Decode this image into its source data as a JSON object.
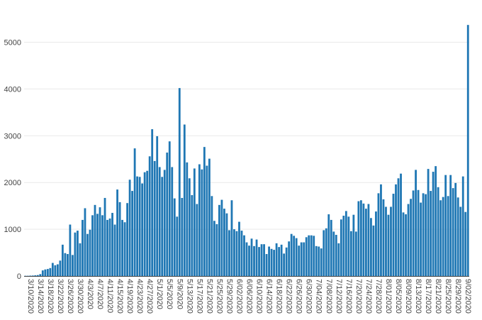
{
  "chart_data": {
    "type": "bar",
    "title": "",
    "xlabel": "",
    "ylabel": "",
    "bar_color": "#1f77b4",
    "ylim": [
      0,
      5600
    ],
    "y_ticks": [
      0,
      1000,
      2000,
      3000,
      4000,
      5000
    ],
    "y_tick_labels": [
      "0",
      "1000",
      "2000",
      "3000",
      "4000",
      "5000"
    ],
    "x_tick_labels": [
      "3/10/2020",
      "3/14/2020",
      "3/18/2020",
      "3/22/2020",
      "3/26/2020",
      "3/30/2020",
      "4/3/2020",
      "4/7/2020",
      "4/11/2020",
      "4/15/2020",
      "4/19/2020",
      "4/23/2020",
      "4/27/2020",
      "5/1/2020",
      "5/5/2020",
      "5/9/2020",
      "5/13/2020",
      "5/17/2020",
      "5/21/2020",
      "5/25/2020",
      "5/29/2020",
      "6/02/2020",
      "6/06/2020",
      "6/10/2020",
      "6/14/2020",
      "6/18/2020",
      "6/22/2020",
      "6/26/2020",
      "6/30/2020",
      "7/04/2020",
      "7/08/2020",
      "7/12/2020",
      "7/16/2020",
      "7/20/2020",
      "7/24/2020",
      "7/28/2020",
      "8/01/2020",
      "8/05/2020",
      "8/09/2020",
      "8/13/2020",
      "8/17/2020",
      "8/21/2020",
      "8/25/2020",
      "8/29/2020",
      "9/02/2020"
    ],
    "x_start": "3/10/2020",
    "x_end": "9/03/2020",
    "values": [
      5,
      5,
      8,
      10,
      15,
      20,
      40,
      120,
      140,
      150,
      170,
      280,
      230,
      250,
      330,
      670,
      490,
      470,
      1100,
      450,
      930,
      970,
      700,
      1200,
      1450,
      900,
      990,
      1300,
      1520,
      1330,
      1470,
      1300,
      1670,
      1200,
      1230,
      1350,
      1100,
      1850,
      1580,
      1200,
      1150,
      1560,
      2060,
      1820,
      2730,
      2130,
      2120,
      1980,
      2220,
      2250,
      2560,
      3140,
      2460,
      2990,
      2330,
      2120,
      2270,
      2640,
      2880,
      2330,
      1660,
      1270,
      4020,
      1670,
      3240,
      2430,
      2090,
      1730,
      2300,
      1540,
      2390,
      2280,
      2760,
      2360,
      2510,
      1710,
      1180,
      1110,
      1520,
      1630,
      1440,
      1340,
      980,
      1620,
      1000,
      960,
      1160,
      970,
      870,
      720,
      650,
      800,
      640,
      780,
      620,
      680,
      680,
      470,
      630,
      580,
      560,
      700,
      620,
      670,
      480,
      610,
      740,
      900,
      860,
      810,
      650,
      720,
      720,
      830,
      870,
      870,
      860,
      640,
      630,
      590,
      980,
      1020,
      1320,
      1200,
      950,
      880,
      700,
      1210,
      1290,
      1390,
      1270,
      960,
      1310,
      950,
      1600,
      1620,
      1550,
      1440,
      1540,
      1240,
      1080,
      1380,
      1770,
      1960,
      1640,
      1480,
      1310,
      1480,
      1760,
      1960,
      2090,
      2190,
      1360,
      1320,
      1540,
      1650,
      1830,
      2270,
      1840,
      1570,
      1770,
      1750,
      2290,
      1820,
      2230,
      2350,
      1900,
      1620,
      1690,
      2160,
      1710,
      2160,
      1880,
      1990,
      1680,
      1480,
      2130,
      1370,
      5370
    ]
  }
}
